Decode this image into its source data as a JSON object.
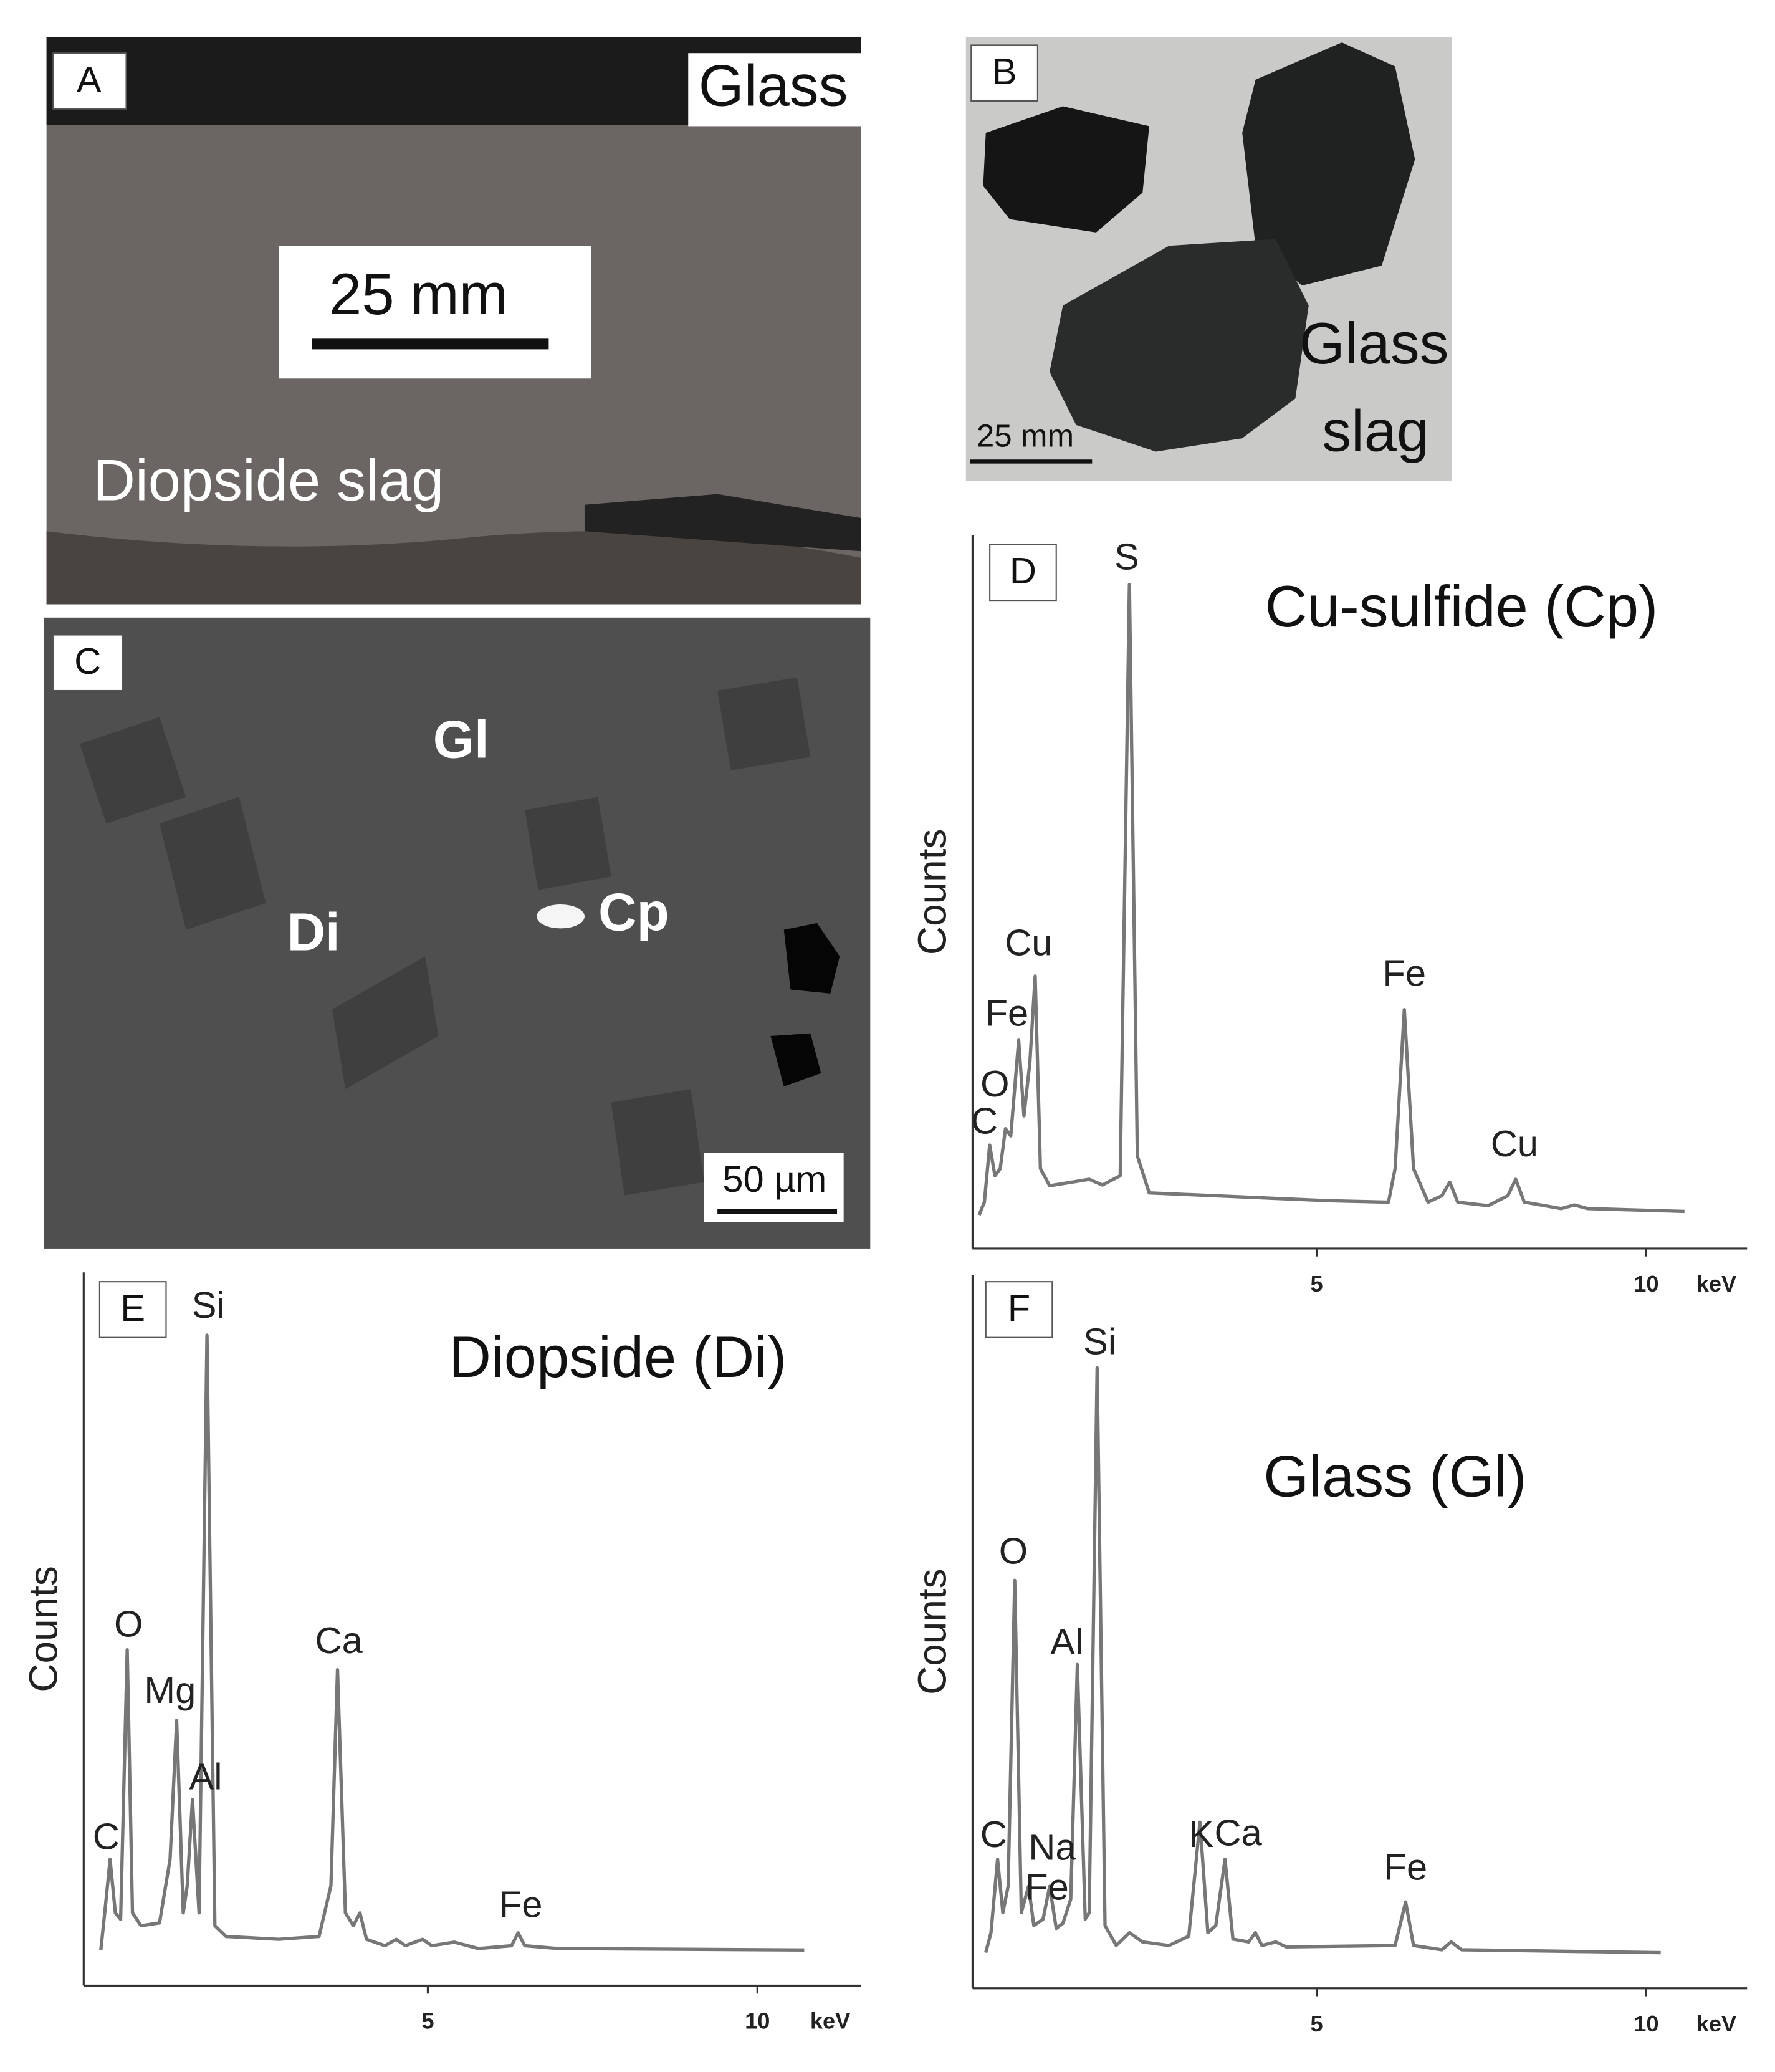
{
  "panel_a": {
    "label": "A",
    "glass": "Glass",
    "scale": "25 mm",
    "sample": "Diopside slag"
  },
  "panel_b": {
    "label": "B",
    "line1": "Glass",
    "line2": "slag",
    "scale": "25 mm"
  },
  "panel_c": {
    "label": "C",
    "glass": "Gl",
    "diopside": "Di",
    "sulfide": "Cp",
    "scale": "50 µm"
  },
  "chart_data": [
    {
      "type": "line",
      "panel_label": "D",
      "title": "Cu-sulfide (Cp)",
      "xlabel": "keV",
      "ylabel": "Counts",
      "color": "#777777",
      "xlim": [
        -0.22,
        11.53
      ],
      "ylim": [
        0,
        100
      ],
      "xticks": [
        5,
        10
      ],
      "x": [
        -0.12,
        -0.04,
        0.04,
        0.12,
        0.2,
        0.28,
        0.36,
        0.48,
        0.56,
        0.65,
        0.73,
        0.81,
        0.95,
        1.55,
        1.75,
        2.02,
        2.16,
        2.28,
        2.46,
        5.18,
        6.09,
        6.19,
        6.33,
        6.47,
        6.69,
        6.9,
        7.02,
        7.14,
        7.6,
        7.9,
        8.02,
        8.15,
        8.71,
        8.91,
        9.11,
        10.58
      ],
      "values": [
        4.7,
        6.5,
        14.5,
        10.2,
        11.2,
        16.8,
        15.8,
        29.2,
        18.6,
        26.1,
        38.2,
        11.2,
        8.8,
        9.7,
        8.9,
        10.2,
        93.1,
        13.0,
        7.8,
        6.7,
        6.5,
        11.2,
        33.5,
        11.2,
        6.5,
        7.4,
        9.3,
        6.5,
        6.0,
        7.4,
        9.7,
        6.5,
        5.6,
        6.1,
        5.6,
        5.2
      ],
      "annotations": [
        {
          "text": "S",
          "x": 2.12,
          "y": 96.6
        },
        {
          "text": "Cu",
          "x": 0.63,
          "y": 42.5
        },
        {
          "text": "Fe",
          "x": 0.3,
          "y": 32.6
        },
        {
          "text": "O",
          "x": 0.12,
          "y": 22.7
        },
        {
          "text": "C",
          "x": -0.04,
          "y": 17.5
        },
        {
          "text": "Fe",
          "x": 6.33,
          "y": 38.2
        },
        {
          "text": "Cu",
          "x": 8.0,
          "y": 14.3
        }
      ]
    },
    {
      "type": "line",
      "panel_label": "E",
      "title": "Diopside (Di)",
      "xlabel": "keV",
      "ylabel": "Counts",
      "color": "#777777",
      "xlim": [
        -0.22,
        11.57
      ],
      "ylim": [
        0,
        100
      ],
      "xticks": [
        5,
        10
      ],
      "x": [
        0.04,
        0.12,
        0.18,
        0.26,
        0.34,
        0.44,
        0.52,
        0.65,
        0.93,
        1.09,
        1.19,
        1.29,
        1.35,
        1.43,
        1.53,
        1.65,
        1.77,
        1.94,
        2.74,
        3.35,
        3.53,
        3.63,
        3.75,
        3.87,
        3.97,
        4.07,
        4.35,
        4.52,
        4.66,
        4.92,
        5.06,
        5.4,
        5.77,
        6.27,
        6.37,
        6.47,
        6.98,
        10.71
      ],
      "values": [
        5.0,
        12.1,
        17.7,
        10.2,
        9.3,
        47.1,
        10.2,
        8.4,
        8.8,
        17.7,
        37.2,
        10.2,
        14.0,
        26.1,
        10.2,
        91.2,
        8.4,
        6.9,
        6.5,
        6.9,
        14.0,
        44.3,
        10.2,
        8.4,
        10.2,
        6.5,
        5.6,
        6.5,
        5.6,
        6.5,
        5.6,
        6.1,
        5.2,
        5.6,
        7.4,
        5.6,
        5.2,
        5.0
      ],
      "annotations": [
        {
          "text": "Si",
          "x": 1.67,
          "y": 95
        },
        {
          "text": "O",
          "x": 0.46,
          "y": 50.3
        },
        {
          "text": "Mg",
          "x": 1.09,
          "y": 41
        },
        {
          "text": "Al",
          "x": 1.63,
          "y": 28.9
        },
        {
          "text": "C",
          "x": 0.12,
          "y": 20.5
        },
        {
          "text": "Ca",
          "x": 3.65,
          "y": 48
        },
        {
          "text": "Fe",
          "x": 6.41,
          "y": 11
        }
      ]
    },
    {
      "type": "line",
      "panel_label": "F",
      "title": "Glass (Gl)",
      "xlabel": "keV",
      "ylabel": "Counts",
      "color": "#777777",
      "xlim": [
        -0.22,
        11.53
      ],
      "ylim": [
        0,
        100
      ],
      "xticks": [
        5,
        10
      ],
      "x": [
        -0.02,
        0.06,
        0.16,
        0.24,
        0.32,
        0.42,
        0.52,
        0.63,
        0.71,
        0.85,
        0.95,
        1.05,
        1.15,
        1.27,
        1.37,
        1.49,
        1.55,
        1.67,
        1.79,
        1.96,
        2.16,
        2.36,
        2.76,
        3.06,
        3.23,
        3.35,
        3.47,
        3.61,
        3.73,
        3.97,
        4.07,
        4.17,
        4.38,
        4.54,
        6.19,
        6.35,
        6.47,
        6.9,
        7.04,
        7.2,
        10.22
      ],
      "values": [
        5.0,
        7.8,
        18.1,
        10.6,
        14.3,
        57.2,
        10.6,
        14.3,
        8.8,
        9.7,
        14.3,
        8.4,
        9.1,
        12.5,
        45.4,
        9.7,
        10.6,
        87.0,
        8.8,
        6.0,
        7.8,
        6.5,
        6.0,
        7.3,
        23.3,
        7.8,
        8.8,
        18.1,
        6.9,
        6.5,
        7.8,
        6.0,
        6.5,
        5.8,
        6.0,
        12.1,
        6.0,
        5.4,
        6.5,
        5.4,
        5.0
      ],
      "annotations": [
        {
          "text": "Si",
          "x": 1.71,
          "y": 90.3
        },
        {
          "text": "O",
          "x": 0.4,
          "y": 60.9
        },
        {
          "text": "Al",
          "x": 1.21,
          "y": 48.2
        },
        {
          "text": "C",
          "x": 0.1,
          "y": 21.2
        },
        {
          "text": "Na",
          "x": 0.99,
          "y": 19.4
        },
        {
          "text": "Fe",
          "x": 0.91,
          "y": 13.8
        },
        {
          "text": "K",
          "x": 3.25,
          "y": 21.2
        },
        {
          "text": "Ca",
          "x": 3.81,
          "y": 21.4
        },
        {
          "text": "Fe",
          "x": 6.35,
          "y": 16.6
        }
      ]
    }
  ]
}
